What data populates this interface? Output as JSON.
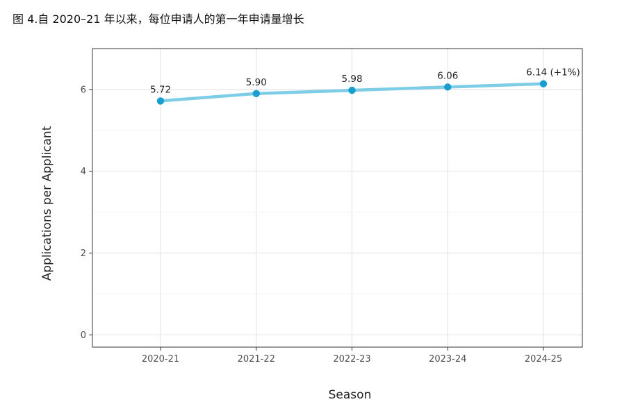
{
  "title": "图 4.自 2020–21 年以来，每位申请人的第一年申请量增长",
  "chart_data": {
    "type": "line",
    "categories": [
      "2020-21",
      "2021-22",
      "2022-23",
      "2023-24",
      "2024-25"
    ],
    "values": [
      5.72,
      5.9,
      5.98,
      6.06,
      6.14
    ],
    "data_labels": [
      "5.72",
      "5.90",
      "5.98",
      "6.06",
      "6.14 (+1%)"
    ],
    "xlabel": "Season",
    "ylabel": "Applications per Applicant",
    "ylim": [
      -0.3,
      7.0
    ],
    "yticks": [
      0,
      2,
      4,
      6
    ],
    "grid": true,
    "line_color": "#7ecde6",
    "point_color": "#1a9ed1"
  }
}
